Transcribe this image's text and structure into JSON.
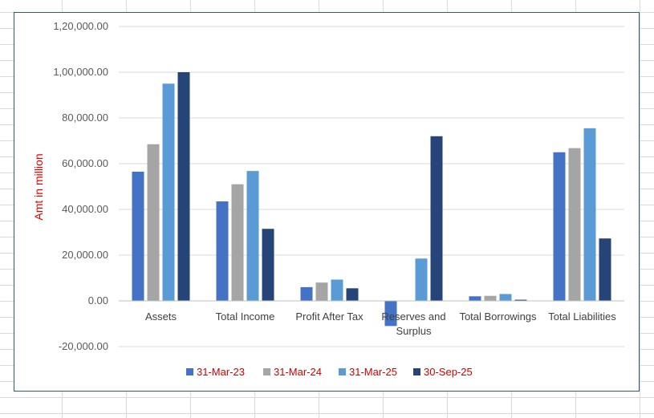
{
  "chart_data": {
    "type": "bar",
    "title": "",
    "xlabel": "",
    "ylabel": "Amt in million",
    "ylim": [
      -20000,
      120000
    ],
    "ytick_step": 20000,
    "yticks": [
      "-20,000.00",
      "0.00",
      "20,000.00",
      "40,000.00",
      "60,000.00",
      "80,000.00",
      "1,00,000.00",
      "1,20,000.00"
    ],
    "categories": [
      "Assets",
      "Total Income",
      "Profit After Tax",
      "Reserves and Surplus",
      "Total Borrowings",
      "Total Liabilities"
    ],
    "series": [
      {
        "name": "31-Mar-23",
        "color": "#4472c4",
        "values": [
          56500,
          43500,
          6000,
          -11000,
          2000,
          65000
        ]
      },
      {
        "name": "31-Mar-24",
        "color": "#a5a5a5",
        "values": [
          68500,
          51000,
          8000,
          0,
          2200,
          66800
        ]
      },
      {
        "name": "31-Mar-25",
        "color": "#5b9bd5",
        "values": [
          95000,
          56800,
          9300,
          18500,
          3000,
          75500
        ]
      },
      {
        "name": "30-Sep-25",
        "color": "#264478",
        "values": [
          100000,
          31500,
          5500,
          72000,
          500,
          27300
        ]
      }
    ],
    "grid": true,
    "legend_position": "bottom"
  }
}
